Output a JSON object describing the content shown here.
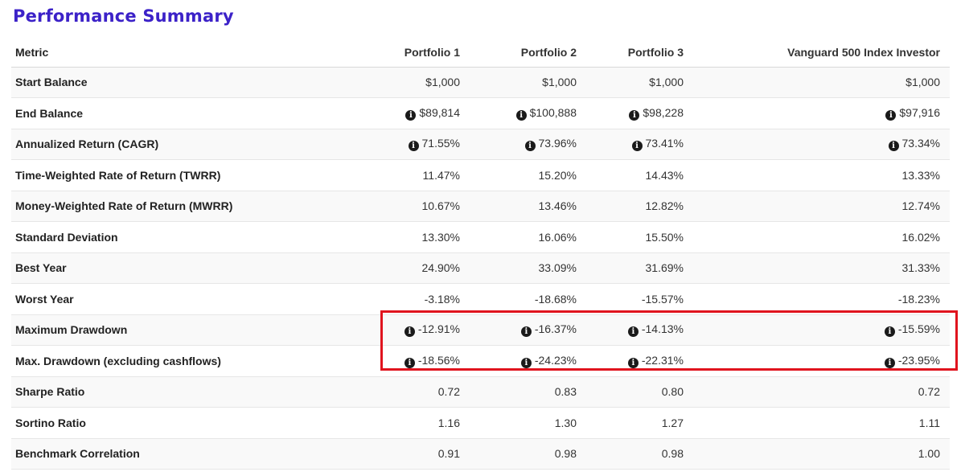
{
  "title": "Performance Summary",
  "columns": [
    "Metric",
    "Portfolio 1",
    "Portfolio 2",
    "Portfolio 3",
    "Vanguard 500 Index Investor"
  ],
  "info_icon": "info-circle-icon",
  "highlight_color": "#e0141e",
  "title_color": "#3c22c8",
  "rows": [
    {
      "metric": "Start Balance",
      "values": [
        "$1,000",
        "$1,000",
        "$1,000",
        "$1,000"
      ],
      "info": false
    },
    {
      "metric": "End Balance",
      "values": [
        "$89,814",
        "$100,888",
        "$98,228",
        "$97,916"
      ],
      "info": true
    },
    {
      "metric": "Annualized Return (CAGR)",
      "values": [
        "71.55%",
        "73.96%",
        "73.41%",
        "73.34%"
      ],
      "info": true
    },
    {
      "metric": "Time-Weighted Rate of Return (TWRR)",
      "values": [
        "11.47%",
        "15.20%",
        "14.43%",
        "13.33%"
      ],
      "info": false
    },
    {
      "metric": "Money-Weighted Rate of Return (MWRR)",
      "values": [
        "10.67%",
        "13.46%",
        "12.82%",
        "12.74%"
      ],
      "info": false
    },
    {
      "metric": "Standard Deviation",
      "values": [
        "13.30%",
        "16.06%",
        "15.50%",
        "16.02%"
      ],
      "info": false
    },
    {
      "metric": "Best Year",
      "values": [
        "24.90%",
        "33.09%",
        "31.69%",
        "31.33%"
      ],
      "info": false
    },
    {
      "metric": "Worst Year",
      "values": [
        "-3.18%",
        "-18.68%",
        "-15.57%",
        "-18.23%"
      ],
      "info": false
    },
    {
      "metric": "Maximum Drawdown",
      "values": [
        "-12.91%",
        "-16.37%",
        "-14.13%",
        "-15.59%"
      ],
      "info": true
    },
    {
      "metric": "Max. Drawdown (excluding cashflows)",
      "values": [
        "-18.56%",
        "-24.23%",
        "-22.31%",
        "-23.95%"
      ],
      "info": true
    },
    {
      "metric": "Sharpe Ratio",
      "values": [
        "0.72",
        "0.83",
        "0.80",
        "0.72"
      ],
      "info": false
    },
    {
      "metric": "Sortino Ratio",
      "values": [
        "1.16",
        "1.30",
        "1.27",
        "1.11"
      ],
      "info": false
    },
    {
      "metric": "Benchmark Correlation",
      "values": [
        "0.91",
        "0.98",
        "0.98",
        "1.00"
      ],
      "info": false
    }
  ]
}
